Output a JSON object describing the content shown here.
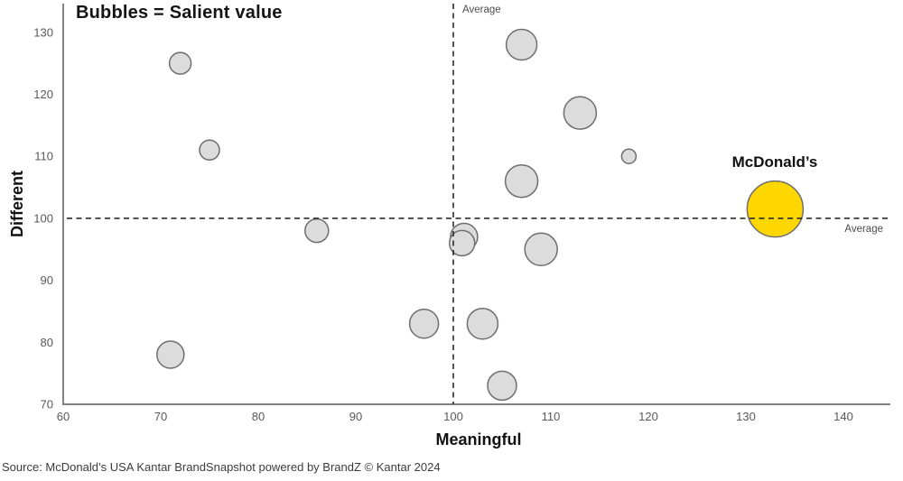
{
  "chart_data": {
    "type": "scatter",
    "subtype": "bubble",
    "title": "Bubbles = Salient value",
    "xlabel": "Meaningful",
    "ylabel": "Different",
    "x_ticks": [
      60,
      70,
      80,
      90,
      100,
      110,
      120,
      130,
      140
    ],
    "y_ticks": [
      70,
      80,
      90,
      100,
      110,
      120,
      130
    ],
    "xlim": [
      60,
      144.8
    ],
    "ylim": [
      70,
      134.6
    ],
    "grid": false,
    "legend_position": "none",
    "average_lines": {
      "x": 100,
      "y": 100,
      "x_label": "Average",
      "y_label": "Average"
    },
    "bubbles": [
      {
        "x": 72,
        "y": 125,
        "r": 12
      },
      {
        "x": 75,
        "y": 111,
        "r": 11
      },
      {
        "x": 86,
        "y": 98,
        "r": 13
      },
      {
        "x": 71,
        "y": 78,
        "r": 15
      },
      {
        "x": 97,
        "y": 83,
        "r": 16
      },
      {
        "x": 103,
        "y": 83,
        "r": 17
      },
      {
        "x": 105,
        "y": 73,
        "r": 16
      },
      {
        "x": 101.1,
        "y": 97,
        "r": 15
      },
      {
        "x": 100.9,
        "y": 96,
        "r": 14
      },
      {
        "x": 109,
        "y": 95,
        "r": 18
      },
      {
        "x": 107,
        "y": 106,
        "r": 18
      },
      {
        "x": 107,
        "y": 128,
        "r": 17
      },
      {
        "x": 113,
        "y": 117,
        "r": 18
      },
      {
        "x": 118,
        "y": 110,
        "r": 8
      },
      {
        "x": 133,
        "y": 101.5,
        "r": 31,
        "label": "McDonald’s",
        "highlight": true
      }
    ],
    "colors": {
      "bubble_fill": "#DCDCDC",
      "bubble_stroke": "#6E6E6E",
      "highlight_fill": "#FFD700",
      "axis": "#828282",
      "dashed": "#2B2B2B",
      "tick_text": "#595959",
      "text": "#141414"
    }
  },
  "labels": {
    "mcdonalds": "McDonald’s",
    "average_top": "Average",
    "average_right": "Average"
  },
  "source": "Source: McDonald’s USA Kantar BrandSnapshot powered by BrandZ © Kantar 2024"
}
